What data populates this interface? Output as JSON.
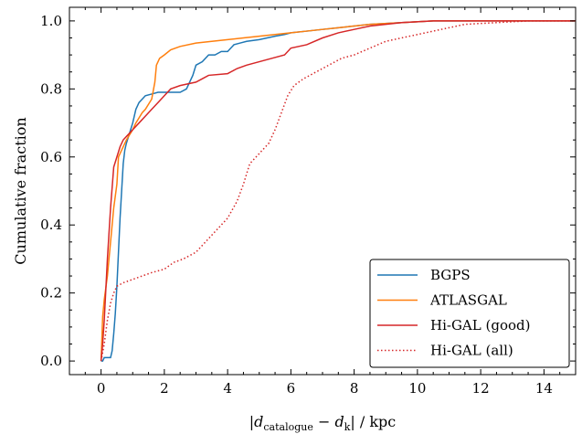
{
  "chart_data": {
    "type": "line",
    "title": "",
    "xlabel": "|d_catalogue − d_k| / kpc",
    "xlabel_parts": {
      "open": "|",
      "d1": "d",
      "sub1": "catalogue",
      "minus": " − ",
      "d2": "d",
      "sub2": "k",
      "close": "| / kpc"
    },
    "ylabel": "Cumulative fraction",
    "xlim": [
      -1.0,
      15.0
    ],
    "ylim": [
      -0.04,
      1.04
    ],
    "xticks": [
      0,
      2,
      4,
      6,
      8,
      10,
      12,
      14
    ],
    "yticks": [
      0.0,
      0.2,
      0.4,
      0.6,
      0.8,
      1.0
    ],
    "xtick_labels": [
      "0",
      "2",
      "4",
      "6",
      "8",
      "10",
      "12",
      "14"
    ],
    "ytick_labels": [
      "0.0",
      "0.2",
      "0.4",
      "0.6",
      "0.8",
      "1.0"
    ],
    "grid": false,
    "legend_position": "bottom-right",
    "series": [
      {
        "name": "BGPS",
        "color": "#1f77b4",
        "style": "solid",
        "points": [
          [
            0,
            0
          ],
          [
            0.05,
            0
          ],
          [
            0.1,
            0.01
          ],
          [
            0.3,
            0.01
          ],
          [
            0.35,
            0.03
          ],
          [
            0.4,
            0.08
          ],
          [
            0.45,
            0.14
          ],
          [
            0.5,
            0.22
          ],
          [
            0.55,
            0.32
          ],
          [
            0.6,
            0.42
          ],
          [
            0.65,
            0.5
          ],
          [
            0.7,
            0.58
          ],
          [
            0.75,
            0.62
          ],
          [
            0.8,
            0.64
          ],
          [
            0.9,
            0.67
          ],
          [
            1.0,
            0.7
          ],
          [
            1.1,
            0.74
          ],
          [
            1.2,
            0.76
          ],
          [
            1.3,
            0.77
          ],
          [
            1.4,
            0.78
          ],
          [
            1.6,
            0.785
          ],
          [
            1.8,
            0.79
          ],
          [
            2.0,
            0.79
          ],
          [
            2.5,
            0.79
          ],
          [
            2.7,
            0.8
          ],
          [
            2.9,
            0.84
          ],
          [
            3.0,
            0.87
          ],
          [
            3.2,
            0.88
          ],
          [
            3.4,
            0.9
          ],
          [
            3.6,
            0.9
          ],
          [
            3.8,
            0.91
          ],
          [
            4.0,
            0.91
          ],
          [
            4.2,
            0.93
          ],
          [
            4.4,
            0.935
          ],
          [
            4.6,
            0.94
          ],
          [
            5.0,
            0.945
          ],
          [
            5.5,
            0.955
          ],
          [
            5.8,
            0.96
          ],
          [
            6.0,
            0.965
          ],
          [
            6.5,
            0.97
          ],
          [
            7.0,
            0.975
          ],
          [
            7.5,
            0.98
          ],
          [
            8.0,
            0.985
          ],
          [
            8.5,
            0.99
          ],
          [
            9.5,
            0.995
          ],
          [
            10.5,
            1.0
          ],
          [
            15,
            1.0
          ]
        ]
      },
      {
        "name": "ATLASGAL",
        "color": "#ff7f0e",
        "style": "solid",
        "points": [
          [
            0,
            0
          ],
          [
            0.05,
            0.13
          ],
          [
            0.1,
            0.18
          ],
          [
            0.2,
            0.25
          ],
          [
            0.3,
            0.35
          ],
          [
            0.4,
            0.45
          ],
          [
            0.5,
            0.52
          ],
          [
            0.55,
            0.6
          ],
          [
            0.65,
            0.62
          ],
          [
            0.8,
            0.65
          ],
          [
            1.0,
            0.68
          ],
          [
            1.1,
            0.7
          ],
          [
            1.3,
            0.73
          ],
          [
            1.4,
            0.74
          ],
          [
            1.6,
            0.77
          ],
          [
            1.7,
            0.82
          ],
          [
            1.75,
            0.87
          ],
          [
            1.85,
            0.89
          ],
          [
            2.0,
            0.9
          ],
          [
            2.2,
            0.915
          ],
          [
            2.5,
            0.925
          ],
          [
            3.0,
            0.935
          ],
          [
            3.5,
            0.94
          ],
          [
            4.0,
            0.945
          ],
          [
            4.5,
            0.95
          ],
          [
            5.0,
            0.955
          ],
          [
            5.5,
            0.96
          ],
          [
            6.0,
            0.965
          ],
          [
            6.5,
            0.97
          ],
          [
            7.0,
            0.975
          ],
          [
            7.5,
            0.98
          ],
          [
            8.0,
            0.985
          ],
          [
            8.5,
            0.99
          ],
          [
            9.5,
            0.995
          ],
          [
            10.5,
            1.0
          ],
          [
            15,
            1.0
          ]
        ]
      },
      {
        "name": "Hi-GAL (good)",
        "color": "#d62728",
        "style": "solid",
        "points": [
          [
            0,
            0
          ],
          [
            0.05,
            0.05
          ],
          [
            0.1,
            0.12
          ],
          [
            0.2,
            0.3
          ],
          [
            0.3,
            0.45
          ],
          [
            0.4,
            0.57
          ],
          [
            0.5,
            0.6
          ],
          [
            0.6,
            0.63
          ],
          [
            0.7,
            0.65
          ],
          [
            0.8,
            0.66
          ],
          [
            1.0,
            0.68
          ],
          [
            1.2,
            0.7
          ],
          [
            1.4,
            0.72
          ],
          [
            1.6,
            0.74
          ],
          [
            1.8,
            0.76
          ],
          [
            2.0,
            0.78
          ],
          [
            2.2,
            0.8
          ],
          [
            2.5,
            0.81
          ],
          [
            3.0,
            0.82
          ],
          [
            3.2,
            0.83
          ],
          [
            3.4,
            0.84
          ],
          [
            4.0,
            0.845
          ],
          [
            4.3,
            0.86
          ],
          [
            4.6,
            0.87
          ],
          [
            5.0,
            0.88
          ],
          [
            5.4,
            0.89
          ],
          [
            5.8,
            0.9
          ],
          [
            6.0,
            0.92
          ],
          [
            6.5,
            0.93
          ],
          [
            7.0,
            0.95
          ],
          [
            7.5,
            0.965
          ],
          [
            8.0,
            0.975
          ],
          [
            8.5,
            0.985
          ],
          [
            9.0,
            0.99
          ],
          [
            9.5,
            0.995
          ],
          [
            10.5,
            1.0
          ],
          [
            15,
            1.0
          ]
        ]
      },
      {
        "name": "Hi-GAL (all)",
        "color": "#d62728",
        "style": "dotted",
        "points": [
          [
            0,
            0
          ],
          [
            0.1,
            0.05
          ],
          [
            0.2,
            0.12
          ],
          [
            0.3,
            0.17
          ],
          [
            0.4,
            0.2
          ],
          [
            0.5,
            0.22
          ],
          [
            0.7,
            0.23
          ],
          [
            1.0,
            0.24
          ],
          [
            1.3,
            0.25
          ],
          [
            1.6,
            0.26
          ],
          [
            2.0,
            0.27
          ],
          [
            2.3,
            0.29
          ],
          [
            2.6,
            0.3
          ],
          [
            3.0,
            0.32
          ],
          [
            3.3,
            0.35
          ],
          [
            3.6,
            0.38
          ],
          [
            4.0,
            0.42
          ],
          [
            4.3,
            0.47
          ],
          [
            4.5,
            0.52
          ],
          [
            4.7,
            0.58
          ],
          [
            5.0,
            0.61
          ],
          [
            5.3,
            0.64
          ],
          [
            5.5,
            0.68
          ],
          [
            5.7,
            0.73
          ],
          [
            5.9,
            0.78
          ],
          [
            6.1,
            0.81
          ],
          [
            6.4,
            0.83
          ],
          [
            6.8,
            0.85
          ],
          [
            7.2,
            0.87
          ],
          [
            7.6,
            0.89
          ],
          [
            8.0,
            0.9
          ],
          [
            8.5,
            0.92
          ],
          [
            9.0,
            0.94
          ],
          [
            9.5,
            0.95
          ],
          [
            10.0,
            0.96
          ],
          [
            10.5,
            0.97
          ],
          [
            11.0,
            0.98
          ],
          [
            11.5,
            0.99
          ],
          [
            12.5,
            0.995
          ],
          [
            13.5,
            1.0
          ],
          [
            15,
            1.0
          ]
        ]
      }
    ]
  }
}
